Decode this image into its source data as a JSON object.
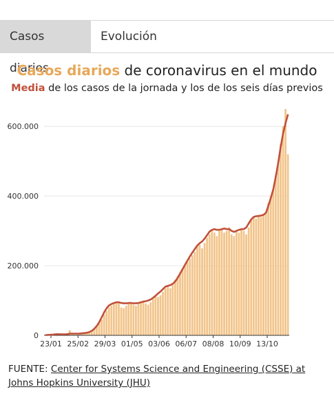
{
  "tabs": [
    {
      "label": "Casos diarios",
      "active": true
    },
    {
      "label": "Evolución",
      "active": false
    }
  ],
  "header": {
    "title_highlight": "Casos diarios",
    "title_rest": " de coronavirus en el mundo",
    "subtitle_highlight": "Media",
    "subtitle_rest": " de los casos de la jornada y los de los seis días previos"
  },
  "source": {
    "prefix": "FUENTE: ",
    "link_text": "Center for Systems Science and Engineering (CSSE) at Johns Hopkins University (JHU)"
  },
  "colors": {
    "bars": "#f2c48a",
    "line": "#c0503a",
    "title_accent": "#e7a85a",
    "grid": "#e6e6e6"
  },
  "chart_data": {
    "type": "bar",
    "ylim": [
      0,
      650000
    ],
    "grid": true,
    "yticks": [
      "0",
      "200.000",
      "400.000",
      "600.000"
    ],
    "ytick_values": [
      0,
      200000,
      400000,
      600000
    ],
    "xticks": [
      "23/01",
      "25/02",
      "29/03",
      "01/05",
      "03/06",
      "06/07",
      "08/08",
      "10/09",
      "13/10"
    ],
    "series": [
      {
        "name": "Casos diarios",
        "style": "bars",
        "values": [
          1000,
          800,
          1500,
          2500,
          3500,
          3000,
          2500,
          2000,
          3000,
          4000,
          15000,
          3000,
          2000,
          2000,
          3000,
          4000,
          5000,
          6000,
          8000,
          12000,
          18000,
          25000,
          35000,
          45000,
          60000,
          70000,
          80000,
          85000,
          90000,
          95000,
          92000,
          80000,
          78000,
          85000,
          92000,
          95000,
          88000,
          85000,
          90000,
          95000,
          100000,
          92000,
          88000,
          95000,
          105000,
          115000,
          110000,
          115000,
          125000,
          135000,
          140000,
          135000,
          145000,
          160000,
          170000,
          180000,
          190000,
          200000,
          210000,
          220000,
          230000,
          240000,
          255000,
          260000,
          250000,
          265000,
          280000,
          290000,
          300000,
          295000,
          285000,
          300000,
          305000,
          295000,
          300000,
          310000,
          290000,
          285000,
          300000,
          295000,
          305000,
          300000,
          290000,
          310000,
          330000,
          340000,
          335000,
          345000,
          340000,
          345000,
          350000,
          380000,
          400000,
          420000,
          460000,
          500000,
          550000,
          600000,
          650000,
          520000
        ]
      },
      {
        "name": "Media",
        "style": "line",
        "values": [
          1000,
          1200,
          1500,
          2200,
          3000,
          3300,
          3200,
          3000,
          3000,
          3300,
          5000,
          5000,
          5000,
          5000,
          5200,
          5800,
          6500,
          7500,
          9500,
          13000,
          19000,
          27000,
          38000,
          52000,
          66000,
          78000,
          86000,
          90000,
          93000,
          95000,
          95000,
          93000,
          92000,
          92000,
          93000,
          93000,
          92000,
          92000,
          93000,
          95000,
          97000,
          98000,
          100000,
          103000,
          108000,
          114000,
          120000,
          126000,
          133000,
          140000,
          142000,
          144000,
          148000,
          155000,
          165000,
          178000,
          190000,
          203000,
          215000,
          227000,
          238000,
          248000,
          258000,
          265000,
          270000,
          278000,
          288000,
          298000,
          303000,
          305000,
          303000,
          303000,
          305000,
          307000,
          305000,
          305000,
          300000,
          297000,
          300000,
          303000,
          305000,
          305000,
          310000,
          322000,
          333000,
          340000,
          342000,
          343000,
          344000,
          346000,
          352000,
          372000,
          395000,
          420000,
          455000,
          495000,
          540000,
          580000,
          610000,
          635000
        ]
      }
    ],
    "xlabel": "",
    "ylabel": ""
  }
}
